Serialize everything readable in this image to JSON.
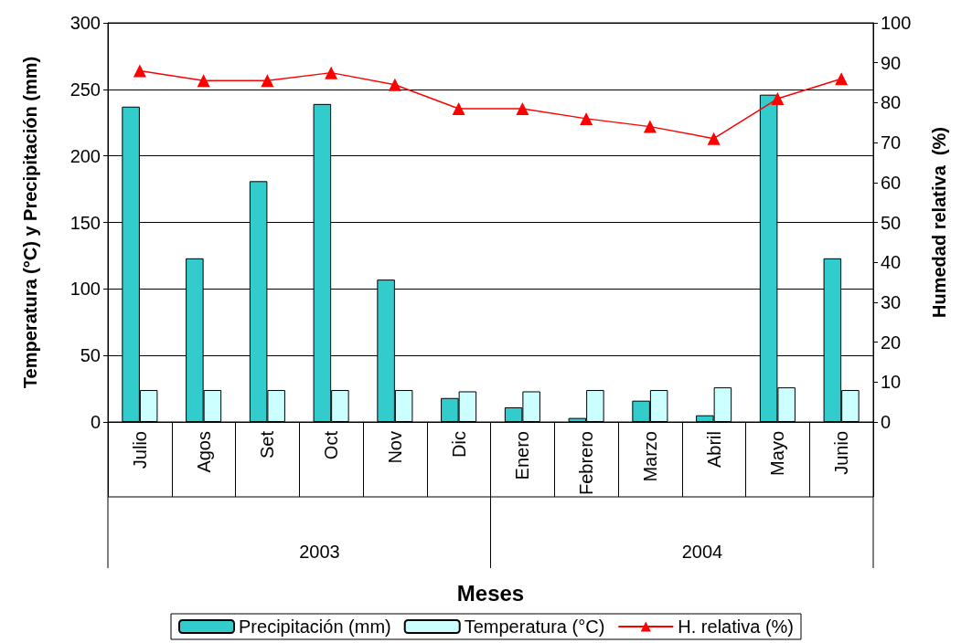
{
  "chart_data": {
    "type": "bar",
    "xlabel": "Meses",
    "ylabel": "Temperatura (°C) y Precipitación (mm)",
    "y2label": "Humedad relativa  (%)",
    "categories": [
      "Julio",
      "Agos",
      "Set",
      "Oct",
      "Nov",
      "Dic",
      "Enero",
      "Febrero",
      "Marzo",
      "Abril",
      "Mayo",
      "Junio"
    ],
    "series": [
      {
        "name": "Precipitación (mm)",
        "color": "#33cccc",
        "values": [
          237,
          123,
          181,
          239,
          107,
          18,
          11,
          3,
          16,
          5,
          246,
          123
        ]
      },
      {
        "name": "Temperatura (°C)",
        "color": "#ccffff",
        "values": [
          24,
          24,
          24,
          24,
          24,
          23,
          23,
          24,
          24,
          26,
          26,
          24
        ]
      },
      {
        "name": "H. relativa (%)",
        "type": "line",
        "axis": "y2",
        "color": "#ff0000",
        "marker": "triangle",
        "line_style": "solid",
        "values": [
          88,
          85.5,
          85.5,
          87.5,
          84.5,
          78.5,
          78.5,
          76,
          74,
          71,
          81,
          86
        ]
      }
    ],
    "ylim": [
      0,
      300
    ],
    "yticks": [
      0,
      50,
      100,
      150,
      200,
      250,
      300
    ],
    "y2lim": [
      0,
      100
    ],
    "y2ticks": [
      0,
      10,
      20,
      30,
      40,
      50,
      60,
      70,
      80,
      90,
      100
    ],
    "grid": "y",
    "legend": "bottom",
    "annotations": [
      "2003",
      "2004"
    ]
  }
}
